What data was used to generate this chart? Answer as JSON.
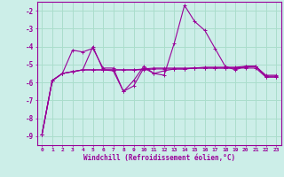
{
  "xlabel": "Windchill (Refroidissement éolien,°C)",
  "background_color": "#cceee8",
  "grid_color": "#aaddcc",
  "line_color": "#990099",
  "xlim": [
    -0.5,
    23.5
  ],
  "ylim": [
    -9.5,
    -1.5
  ],
  "yticks": [
    -9,
    -8,
    -7,
    -6,
    -5,
    -4,
    -3,
    -2
  ],
  "xticks": [
    0,
    1,
    2,
    3,
    4,
    5,
    6,
    7,
    8,
    9,
    10,
    11,
    12,
    13,
    14,
    15,
    16,
    17,
    18,
    19,
    20,
    21,
    22,
    23
  ],
  "s1_y": [
    -8.9,
    -5.9,
    -5.5,
    -5.4,
    -5.3,
    -5.3,
    -5.3,
    -5.3,
    -5.3,
    -5.3,
    -5.3,
    -5.25,
    -5.25,
    -5.25,
    -5.25,
    -5.2,
    -5.2,
    -5.2,
    -5.2,
    -5.2,
    -5.2,
    -5.2,
    -5.7,
    -5.7
  ],
  "s2_y": [
    -8.9,
    -5.9,
    -5.5,
    -5.4,
    -5.3,
    -5.3,
    -5.3,
    -5.3,
    -5.3,
    -5.3,
    -5.25,
    -5.2,
    -5.2,
    -5.2,
    -5.2,
    -5.2,
    -5.15,
    -5.15,
    -5.15,
    -5.15,
    -5.1,
    -5.1,
    -5.65,
    -5.65
  ],
  "s3_y": [
    -8.9,
    -5.9,
    -5.5,
    -4.2,
    -4.3,
    -4.1,
    -5.2,
    -5.2,
    -6.5,
    -6.2,
    -5.2,
    -5.5,
    -5.6,
    -3.8,
    -1.7,
    -2.6,
    -3.1,
    -4.1,
    -5.1,
    -5.3,
    -5.1,
    -5.1,
    -5.7,
    -5.7
  ],
  "s4_y": [
    -8.9,
    -5.9,
    -5.5,
    -5.4,
    -5.3,
    -4.0,
    -5.3,
    -5.35,
    -6.5,
    -5.9,
    -5.1,
    -5.5,
    -5.35,
    -5.25,
    -5.25,
    -5.2,
    -5.2,
    -5.2,
    -5.2,
    -5.2,
    -5.15,
    -5.1,
    -5.6,
    -5.6
  ]
}
